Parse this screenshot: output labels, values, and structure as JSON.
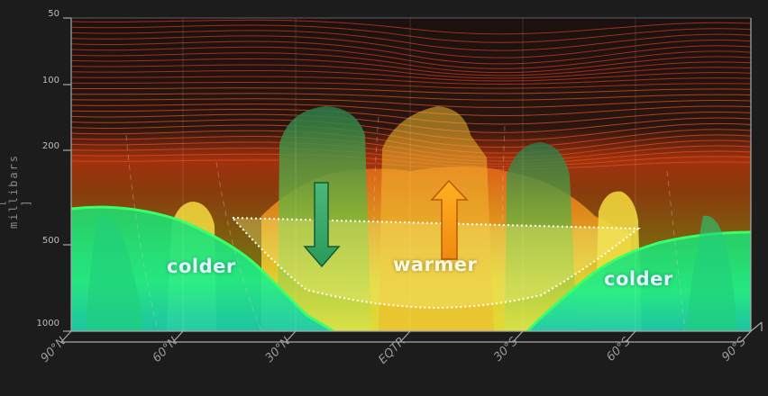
{
  "axis": {
    "y_title": "[ millibars ]",
    "y_ticks": [
      "50",
      "100",
      "200",
      "500",
      "1000"
    ],
    "x_ticks": [
      "90°N",
      "60°N",
      "30°N",
      "EQTR",
      "30°S",
      "60°S",
      "90°S"
    ]
  },
  "regions": {
    "left": "colder",
    "center": "warmer",
    "right": "colder"
  },
  "colors": {
    "background": "#1c1c1c",
    "stratosphere": "#c2381a",
    "cold_air": "#22e07a",
    "warm_air": "#f2e53a",
    "sinking_arrow": "#37c07a",
    "rising_arrow": "#f7a21b",
    "circulation_outline": "#ffffff"
  }
}
